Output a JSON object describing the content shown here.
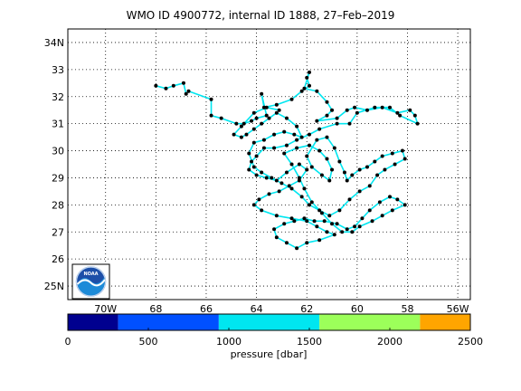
{
  "title": "WMO ID 4900772, internal ID 1888, 27–Feb–2019",
  "map": {
    "lon_range": [
      -71.5,
      -55.5
    ],
    "lat_range": [
      24.5,
      34.5
    ],
    "grid": true,
    "lon_ticks": [
      {
        "lon": -70,
        "label": "70W"
      },
      {
        "lon": -68,
        "label": "68"
      },
      {
        "lon": -66,
        "label": "66"
      },
      {
        "lon": -64,
        "label": "64"
      },
      {
        "lon": -62,
        "label": "62"
      },
      {
        "lon": -60,
        "label": "60"
      },
      {
        "lon": -58,
        "label": "58"
      },
      {
        "lon": -56,
        "label": "56W"
      }
    ],
    "lat_ticks": [
      {
        "lat": 25,
        "label": "25N"
      },
      {
        "lat": 26,
        "label": "26"
      },
      {
        "lat": 27,
        "label": "27"
      },
      {
        "lat": 28,
        "label": "28"
      },
      {
        "lat": 29,
        "label": "29"
      },
      {
        "lat": 30,
        "label": "30"
      },
      {
        "lat": 31,
        "label": "31"
      },
      {
        "lat": 32,
        "label": "32"
      },
      {
        "lat": 33,
        "label": "33"
      },
      {
        "lat": 34,
        "label": "34N"
      }
    ],
    "logo": "noaa-logo",
    "track_color": "#00e6f0",
    "point_color": "#000000"
  },
  "chart_data": {
    "type": "scatter",
    "title": "WMO ID 4900772, internal ID 1888, 27–Feb–2019",
    "xlabel": "",
    "ylabel": "",
    "xlim": [
      -71.5,
      -55.5
    ],
    "ylim": [
      24.5,
      34.5
    ],
    "track": [
      [
        -68.0,
        32.4
      ],
      [
        -67.6,
        32.3
      ],
      [
        -67.3,
        32.4
      ],
      [
        -66.9,
        32.5
      ],
      [
        -66.8,
        32.1
      ],
      [
        -66.7,
        32.2
      ],
      [
        -65.8,
        31.9
      ],
      [
        -65.8,
        31.3
      ],
      [
        -65.4,
        31.2
      ],
      [
        -64.8,
        31.0
      ],
      [
        -64.5,
        31.0
      ],
      [
        -64.2,
        31.1
      ],
      [
        -64.0,
        31.2
      ],
      [
        -63.6,
        31.3
      ],
      [
        -63.8,
        32.1
      ],
      [
        -63.7,
        31.6
      ],
      [
        -63.2,
        31.7
      ],
      [
        -62.6,
        31.9
      ],
      [
        -62.2,
        32.2
      ],
      [
        -61.9,
        32.4
      ],
      [
        -62.0,
        32.7
      ],
      [
        -61.9,
        32.9
      ],
      [
        -62.1,
        32.3
      ],
      [
        -61.6,
        32.2
      ],
      [
        -61.2,
        31.8
      ],
      [
        -61.0,
        31.5
      ],
      [
        -61.2,
        31.3
      ],
      [
        -61.6,
        31.1
      ],
      [
        -60.8,
        31.2
      ],
      [
        -60.4,
        31.5
      ],
      [
        -60.1,
        31.6
      ],
      [
        -59.6,
        31.5
      ],
      [
        -59.0,
        31.6
      ],
      [
        -58.4,
        31.4
      ],
      [
        -57.9,
        31.5
      ],
      [
        -57.7,
        31.3
      ],
      [
        -57.6,
        31.0
      ],
      [
        -58.3,
        31.3
      ],
      [
        -58.7,
        31.6
      ],
      [
        -59.3,
        31.6
      ],
      [
        -60.0,
        31.4
      ],
      [
        -60.3,
        31.0
      ],
      [
        -60.8,
        31.0
      ],
      [
        -61.5,
        30.8
      ],
      [
        -61.9,
        30.6
      ],
      [
        -62.4,
        30.4
      ],
      [
        -62.8,
        30.2
      ],
      [
        -63.3,
        30.1
      ],
      [
        -63.7,
        30.1
      ],
      [
        -64.0,
        29.8
      ],
      [
        -64.2,
        29.6
      ],
      [
        -64.3,
        29.3
      ],
      [
        -64.0,
        29.1
      ],
      [
        -63.6,
        29.0
      ],
      [
        -63.2,
        28.9
      ],
      [
        -62.8,
        29.2
      ],
      [
        -62.3,
        29.5
      ],
      [
        -62.0,
        29.3
      ],
      [
        -62.3,
        28.9
      ],
      [
        -62.7,
        28.7
      ],
      [
        -63.1,
        28.5
      ],
      [
        -63.5,
        28.4
      ],
      [
        -63.9,
        28.2
      ],
      [
        -64.1,
        28.0
      ],
      [
        -63.8,
        27.8
      ],
      [
        -63.2,
        27.6
      ],
      [
        -62.6,
        27.5
      ],
      [
        -62.0,
        27.4
      ],
      [
        -61.6,
        27.2
      ],
      [
        -61.2,
        27.0
      ],
      [
        -60.9,
        26.9
      ],
      [
        -61.5,
        26.7
      ],
      [
        -62.0,
        26.6
      ],
      [
        -62.4,
        26.4
      ],
      [
        -62.8,
        26.6
      ],
      [
        -63.2,
        26.8
      ],
      [
        -63.3,
        27.1
      ],
      [
        -62.9,
        27.3
      ],
      [
        -62.5,
        27.4
      ],
      [
        -62.1,
        27.5
      ],
      [
        -61.7,
        27.4
      ],
      [
        -61.3,
        27.4
      ],
      [
        -60.8,
        27.3
      ],
      [
        -60.4,
        27.1
      ],
      [
        -60.1,
        27.2
      ],
      [
        -59.8,
        27.5
      ],
      [
        -59.5,
        27.8
      ],
      [
        -59.1,
        28.1
      ],
      [
        -58.7,
        28.3
      ],
      [
        -58.4,
        28.2
      ],
      [
        -58.1,
        28.0
      ],
      [
        -58.6,
        27.8
      ],
      [
        -59.0,
        27.6
      ],
      [
        -59.4,
        27.4
      ],
      [
        -59.9,
        27.2
      ],
      [
        -60.2,
        27.0
      ],
      [
        -60.6,
        27.0
      ],
      [
        -61.0,
        27.3
      ],
      [
        -61.4,
        27.7
      ],
      [
        -61.8,
        28.1
      ],
      [
        -62.1,
        28.6
      ],
      [
        -62.3,
        29.0
      ],
      [
        -62.6,
        29.5
      ],
      [
        -62.9,
        29.9
      ],
      [
        -62.4,
        30.1
      ],
      [
        -61.9,
        30.2
      ],
      [
        -61.5,
        30.0
      ],
      [
        -61.2,
        29.7
      ],
      [
        -61.0,
        29.3
      ],
      [
        -61.1,
        28.9
      ],
      [
        -61.4,
        29.1
      ],
      [
        -61.8,
        29.4
      ],
      [
        -62.0,
        29.8
      ],
      [
        -61.6,
        30.4
      ],
      [
        -61.2,
        30.5
      ],
      [
        -60.9,
        30.1
      ],
      [
        -60.7,
        29.6
      ],
      [
        -60.5,
        29.2
      ],
      [
        -60.4,
        28.9
      ],
      [
        -60.2,
        29.1
      ],
      [
        -59.9,
        29.3
      ],
      [
        -59.6,
        29.4
      ],
      [
        -59.3,
        29.6
      ],
      [
        -59.0,
        29.8
      ],
      [
        -58.6,
        29.9
      ],
      [
        -58.2,
        30.0
      ],
      [
        -58.1,
        29.7
      ],
      [
        -58.5,
        29.5
      ],
      [
        -58.9,
        29.3
      ],
      [
        -59.2,
        29.1
      ],
      [
        -59.5,
        28.7
      ],
      [
        -59.9,
        28.5
      ],
      [
        -60.3,
        28.2
      ],
      [
        -60.7,
        27.8
      ],
      [
        -61.1,
        27.6
      ],
      [
        -61.5,
        27.8
      ],
      [
        -61.9,
        28.0
      ],
      [
        -62.2,
        28.3
      ],
      [
        -62.6,
        28.6
      ],
      [
        -63.0,
        28.8
      ],
      [
        -63.4,
        29.0
      ],
      [
        -63.8,
        29.2
      ],
      [
        -64.1,
        29.4
      ],
      [
        -64.3,
        29.9
      ],
      [
        -64.1,
        30.3
      ],
      [
        -63.7,
        30.4
      ],
      [
        -63.3,
        30.6
      ],
      [
        -62.9,
        30.7
      ],
      [
        -62.5,
        30.6
      ],
      [
        -62.2,
        30.5
      ],
      [
        -62.4,
        30.9
      ],
      [
        -62.8,
        31.2
      ],
      [
        -63.2,
        31.4
      ],
      [
        -63.5,
        31.2
      ],
      [
        -63.8,
        31.0
      ],
      [
        -64.1,
        30.8
      ],
      [
        -64.4,
        30.6
      ],
      [
        -64.6,
        30.5
      ],
      [
        -64.9,
        30.6
      ],
      [
        -64.6,
        30.9
      ],
      [
        -64.1,
        31.4
      ],
      [
        -63.6,
        31.6
      ],
      [
        -63.1,
        31.5
      ]
    ],
    "colorbar": {
      "label": "pressure [dbar]",
      "range": [
        0,
        2500
      ],
      "ticks": [
        0,
        500,
        1000,
        1500,
        2000,
        2500
      ],
      "bins": [
        {
          "from": 0,
          "to": 312.5,
          "color": "#00008f"
        },
        {
          "from": 312.5,
          "to": 937.5,
          "color": "#0050ff"
        },
        {
          "from": 937.5,
          "to": 1562.5,
          "color": "#00e6f0"
        },
        {
          "from": 1562.5,
          "to": 2187.5,
          "color": "#9cff5a"
        },
        {
          "from": 2187.5,
          "to": 2500,
          "color": "#ffa500"
        }
      ]
    }
  }
}
